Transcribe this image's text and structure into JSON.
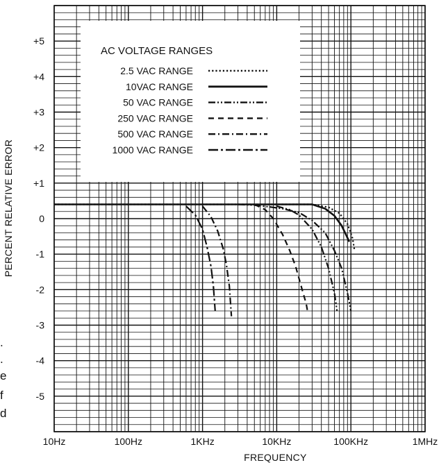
{
  "chart_data": {
    "type": "line",
    "xlabel": "FREQUENCY",
    "ylabel": "PERCENT RELATIVE ERROR",
    "x_scale": "log",
    "xlim": [
      10,
      1000000
    ],
    "ylim": [
      -6,
      6
    ],
    "grid": true,
    "x_tick_values": [
      10,
      100,
      1000,
      10000,
      100000,
      1000000
    ],
    "x_tick_labels": [
      "10Hz",
      "100Hz",
      "1KHz",
      "10KHz",
      "100KHz",
      "1MHz"
    ],
    "y_tick_values": [
      5,
      4,
      3,
      2,
      1,
      0,
      -1,
      -2,
      -3,
      -4,
      -5
    ],
    "y_tick_labels": [
      "+5",
      "+4",
      "+3",
      "+2",
      "+1",
      "0",
      "-1",
      "-2",
      "-3",
      "-4",
      "-5"
    ],
    "legend": {
      "title": "AC VOLTAGE RANGES",
      "placement": "top-left"
    },
    "series": [
      {
        "name": "2.5 VAC RANGE",
        "style": "dotted",
        "x": [
          10,
          30000,
          50000,
          70000,
          90000,
          105000,
          112000
        ],
        "y": [
          0.4,
          0.4,
          0.32,
          0.15,
          -0.15,
          -0.55,
          -0.9
        ]
      },
      {
        "name": "10VAC RANGE",
        "style": "solid",
        "x": [
          10,
          30000,
          45000,
          60000,
          75000,
          88000,
          95000
        ],
        "y": [
          0.4,
          0.4,
          0.28,
          0.08,
          -0.2,
          -0.5,
          -0.65
        ]
      },
      {
        "name": "50 VAC RANGE",
        "style": "dash-dot-dot",
        "x": [
          3000,
          5000,
          8000,
          12000,
          20000,
          30000,
          45000,
          60000,
          75000,
          90000,
          100000
        ],
        "y": [
          0.4,
          0.38,
          0.33,
          0.28,
          0.17,
          -0.05,
          -0.4,
          -0.9,
          -1.4,
          -2.1,
          -2.6
        ]
      },
      {
        "name": "250 VAC RANGE",
        "style": "dashed",
        "x": [
          5000,
          7000,
          9000,
          12000,
          15000,
          18000,
          22000,
          25000,
          26000
        ],
        "y": [
          0.4,
          0.25,
          0.0,
          -0.45,
          -0.9,
          -1.35,
          -2.0,
          -2.4,
          -2.6
        ]
      },
      {
        "name": "500 VAC RANGE",
        "style": "dash-dot",
        "x": [
          1000,
          1300,
          1600,
          1900,
          2100,
          2300,
          2450
        ],
        "y": [
          0.35,
          0.05,
          -0.35,
          -0.85,
          -1.3,
          -1.9,
          -2.75
        ]
      },
      {
        "name": "1000 VAC RANGE",
        "style": "dash-dot-long",
        "x": [
          600,
          800,
          1000,
          1150,
          1300,
          1400,
          1480
        ],
        "y": [
          0.35,
          0.1,
          -0.3,
          -0.8,
          -1.35,
          -1.9,
          -2.6
        ]
      },
      {
        "name": "",
        "style": "dash-dot-dot",
        "x": [
          10000,
          15000,
          20000,
          30000,
          40000,
          50000,
          60000,
          65000
        ],
        "y": [
          0.35,
          0.25,
          0.1,
          -0.3,
          -0.8,
          -1.4,
          -2.1,
          -2.6
        ]
      }
    ]
  },
  "margin_text": [
    ".",
    ".",
    "e",
    "f",
    "d"
  ]
}
